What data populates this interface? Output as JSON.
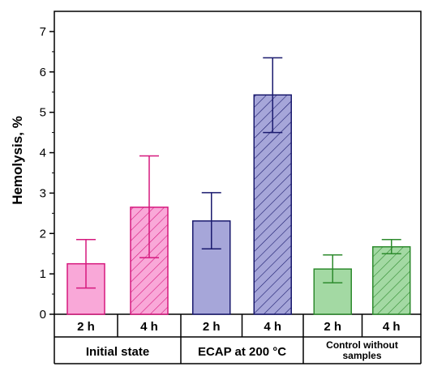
{
  "chart_data": {
    "type": "bar",
    "title": "",
    "ylabel": "Hemolysis, %",
    "xlabel": "",
    "ylim": [
      0,
      7.5
    ],
    "yticks": [
      0,
      1,
      2,
      3,
      4,
      5,
      6,
      7
    ],
    "grid": false,
    "legend": "none",
    "groups": [
      {
        "label": "Initial state",
        "label_lines": [
          "Initial state"
        ]
      },
      {
        "label": "ECAP at 200 °C",
        "label_lines": [
          "ECAP at 200 °C"
        ]
      },
      {
        "label": "Control without samples",
        "label_lines": [
          "Control without",
          "samples"
        ]
      }
    ],
    "bars": [
      {
        "group": 0,
        "category": "2 h",
        "value": 1.25,
        "err_low": 0.65,
        "err_high": 1.85,
        "hatched": false,
        "fill": "#f9a8d8",
        "stroke": "#d6197e"
      },
      {
        "group": 0,
        "category": "4 h",
        "value": 2.65,
        "err_low": 1.4,
        "err_high": 3.92,
        "hatched": true,
        "fill": "#f9a8d8",
        "stroke": "#d6197e"
      },
      {
        "group": 1,
        "category": "2 h",
        "value": 2.31,
        "err_low": 1.62,
        "err_high": 3.01,
        "hatched": false,
        "fill": "#a6a6d9",
        "stroke": "#1a1a6e"
      },
      {
        "group": 1,
        "category": "4 h",
        "value": 5.43,
        "err_low": 4.5,
        "err_high": 6.35,
        "hatched": true,
        "fill": "#a6a6d9",
        "stroke": "#1a1a6e"
      },
      {
        "group": 2,
        "category": "2 h",
        "value": 1.12,
        "err_low": 0.78,
        "err_high": 1.47,
        "hatched": false,
        "fill": "#a3d9a3",
        "stroke": "#2e8b2e"
      },
      {
        "group": 2,
        "category": "4 h",
        "value": 1.67,
        "err_low": 1.5,
        "err_high": 1.85,
        "hatched": true,
        "fill": "#a3d9a3",
        "stroke": "#2e8b2e"
      }
    ]
  }
}
